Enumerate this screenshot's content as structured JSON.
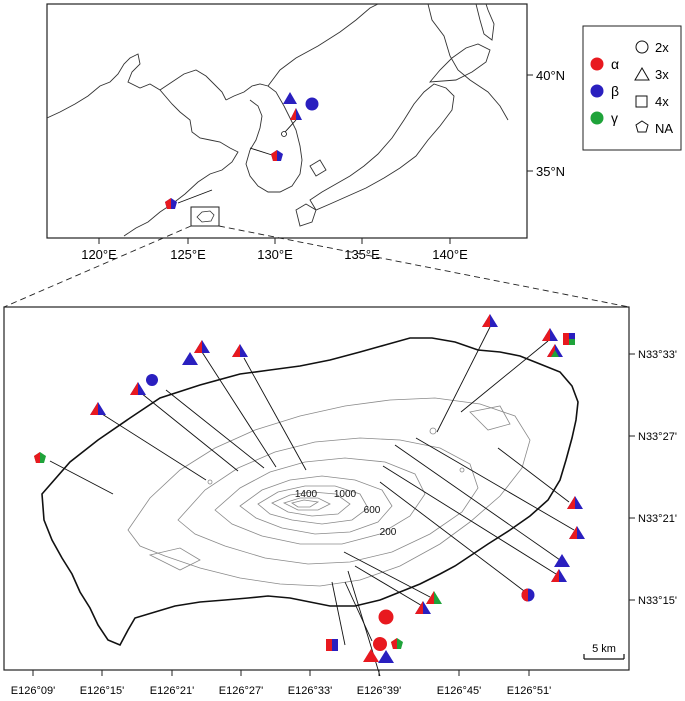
{
  "region_map": {
    "lat_ticks": [
      "40°N",
      "35°N"
    ],
    "lon_ticks": [
      "120°E",
      "125°E",
      "130°E",
      "135°E",
      "140°E"
    ]
  },
  "legend": {
    "colors": [
      {
        "label": "α",
        "color": "#e8191f"
      },
      {
        "label": "β",
        "color": "#2a1fbf"
      },
      {
        "label": "γ",
        "color": "#1fa33a"
      }
    ],
    "shapes": [
      {
        "label": "2x",
        "icon": "circle-icon"
      },
      {
        "label": "3x",
        "icon": "triangle-icon"
      },
      {
        "label": "4x",
        "icon": "square-icon"
      },
      {
        "label": "NA",
        "icon": "pentagon-icon"
      }
    ]
  },
  "island_map": {
    "lat_ticks": [
      "N33°33'",
      "N33°27'",
      "N33°21'",
      "N33°15'"
    ],
    "lon_ticks": [
      "E126°09'",
      "E126°15'",
      "E126°21'",
      "E126°27'",
      "E126°33'",
      "E126°39'",
      "E126°45'",
      "E126°51'"
    ],
    "contour_labels": [
      "1400",
      "1000",
      "600",
      "200"
    ],
    "scale_bar": "5 km"
  }
}
